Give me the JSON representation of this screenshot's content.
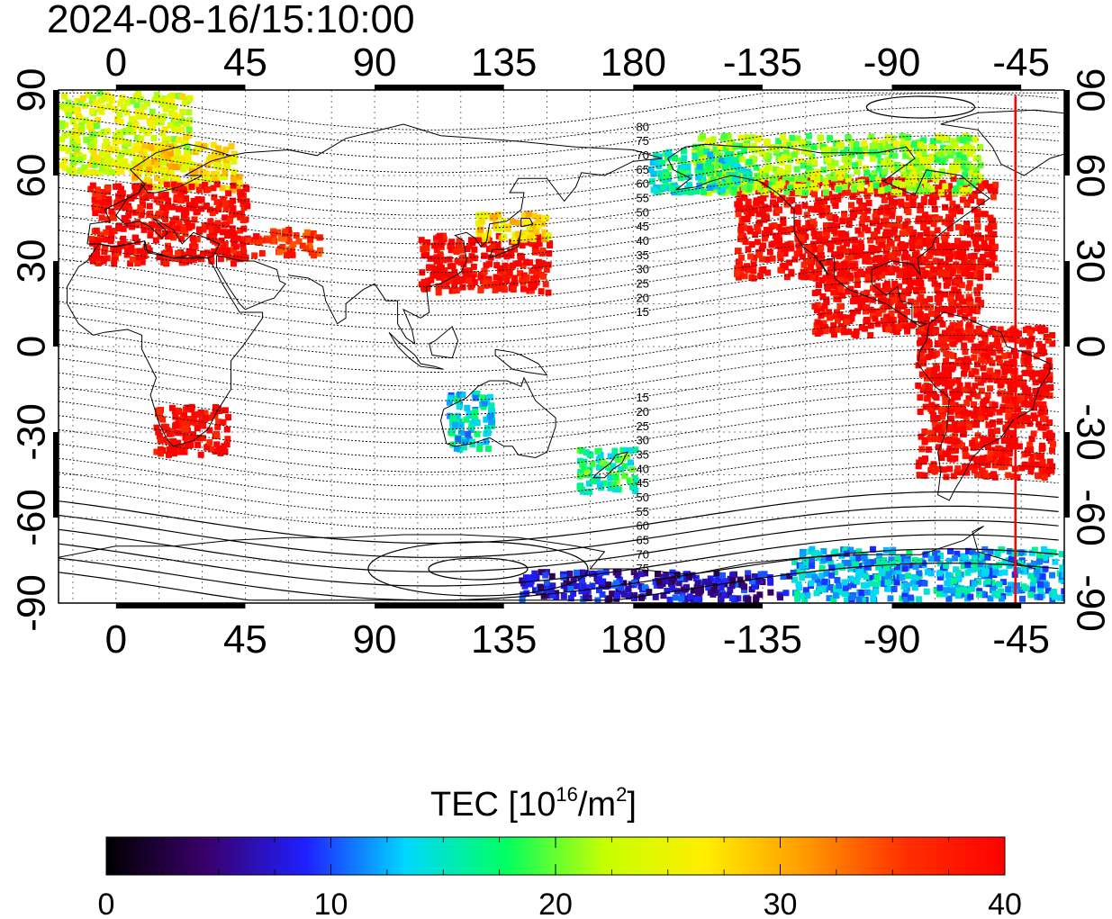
{
  "title": "2024-08-16/15:10:00",
  "axes": {
    "x_top_labels": [
      "0",
      "45",
      "90",
      "135",
      "180",
      "-135",
      "-90",
      "-45"
    ],
    "x_bottom_labels": [
      "0",
      "45",
      "90",
      "135",
      "180",
      "-135",
      "-90",
      "-45"
    ],
    "y_left_labels": [
      "90",
      "60",
      "30",
      "0",
      "-30",
      "-60",
      "-90"
    ],
    "y_right_labels": [
      "90",
      "60",
      "30",
      "0",
      "-30",
      "-60",
      "-90"
    ],
    "lon_range": [
      -20,
      330
    ],
    "lat_range": [
      -90,
      90
    ]
  },
  "magnetic_latitude_labels": {
    "north": [
      "80",
      "75",
      "70",
      "65",
      "60",
      "55",
      "50",
      "45",
      "40",
      "35",
      "30",
      "25",
      "20",
      "15"
    ],
    "south": [
      "15",
      "20",
      "25",
      "30",
      "35",
      "40",
      "45",
      "50",
      "55",
      "60",
      "65",
      "70",
      "75"
    ]
  },
  "terminator": {
    "longitude": -47,
    "color": "#ff0000"
  },
  "colorbar": {
    "title_prefix": "TEC  [10",
    "title_sup1": "16",
    "title_mid": "/m",
    "title_sup2": "2",
    "title_suffix": "]",
    "min": 0,
    "max": 40,
    "tick_labels": [
      "0",
      "10",
      "20",
      "30",
      "40"
    ],
    "stops": [
      "#000000",
      "#3a006b",
      "#1f1fff",
      "#00d8ff",
      "#00ff60",
      "#c8ff00",
      "#ffee00",
      "#ff9a00",
      "#ff3000",
      "#ff0000"
    ]
  },
  "tec_regions": [
    {
      "name": "arctic-greenland",
      "lon": [
        -20,
        25
      ],
      "lat": [
        62,
        90
      ],
      "tec": 24
    },
    {
      "name": "scandinavia",
      "lon": [
        5,
        42
      ],
      "lat": [
        56,
        72
      ],
      "tec": 27
    },
    {
      "name": "europe",
      "lon": [
        -10,
        45
      ],
      "lat": [
        30,
        58
      ],
      "tec": 40
    },
    {
      "name": "middle-east",
      "lon": [
        45,
        70
      ],
      "lat": [
        33,
        42
      ],
      "tec": 37
    },
    {
      "name": "southern-africa",
      "lon": [
        12,
        38
      ],
      "lat": [
        -37,
        -20
      ],
      "tec": 40
    },
    {
      "name": "east-asia",
      "lon": [
        105,
        150
      ],
      "lat": [
        20,
        40
      ],
      "tec": 40
    },
    {
      "name": "north-japan",
      "lon": [
        125,
        150
      ],
      "lat": [
        38,
        48
      ],
      "tec": 27
    },
    {
      "name": "north-america",
      "lon": [
        -145,
        -55
      ],
      "lat": [
        25,
        60
      ],
      "tec": 40
    },
    {
      "name": "canada-north",
      "lon": [
        -160,
        -60
      ],
      "lat": [
        55,
        75
      ],
      "tec": 22
    },
    {
      "name": "alaska",
      "lon": [
        -175,
        -140
      ],
      "lat": [
        55,
        70
      ],
      "tec": 16
    },
    {
      "name": "central-america",
      "lon": [
        -118,
        -60
      ],
      "lat": [
        5,
        30
      ],
      "tec": 40
    },
    {
      "name": "south-america",
      "lon": [
        -82,
        -35
      ],
      "lat": [
        -45,
        8
      ],
      "tec": 40
    },
    {
      "name": "australia-west",
      "lon": [
        115,
        130
      ],
      "lat": [
        -35,
        -15
      ],
      "tec": 14
    },
    {
      "name": "new-zealand",
      "lon": [
        160,
        180
      ],
      "lat": [
        -50,
        -35
      ],
      "tec": 17
    },
    {
      "name": "antarctic-west",
      "lon": [
        -125,
        -20
      ],
      "lat": [
        -88,
        -70
      ],
      "tec": 13
    },
    {
      "name": "antarctic-pacific",
      "lon": [
        140,
        235
      ],
      "lat": [
        -88,
        -78
      ],
      "tec": 7
    }
  ]
}
